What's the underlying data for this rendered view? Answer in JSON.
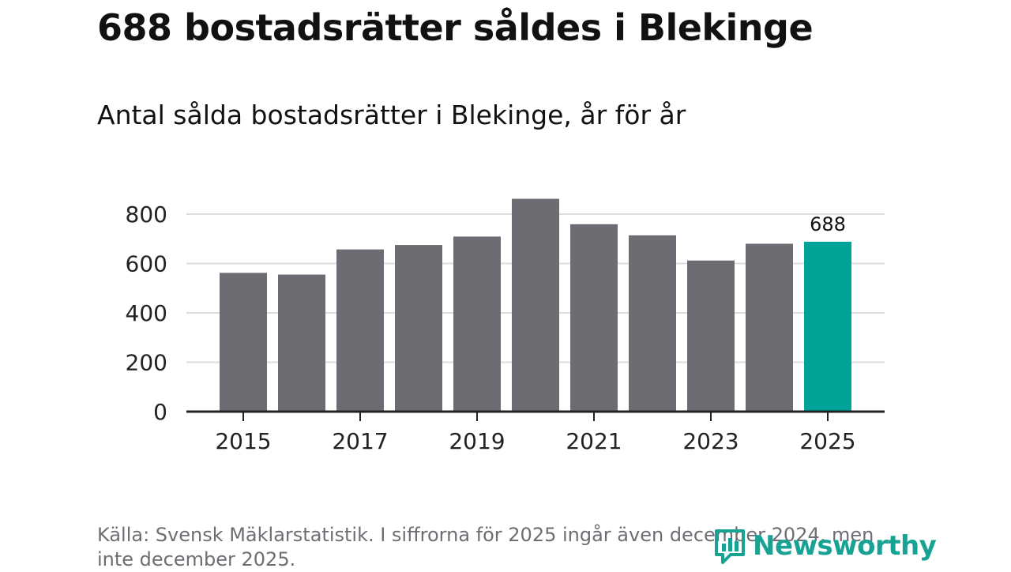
{
  "headline": "688 bostadsrätter såldes i Blekinge",
  "subtitle": "Antal sålda bostadsrätter i Blekinge, år för år",
  "source_note": "Källa: Svensk Mäklarstatistik. I siffrorna för 2025 ingår även december 2024, men inte december 2025.",
  "brand": {
    "name": "Newsworthy",
    "icon": "bar-chart-logo-icon"
  },
  "colors": {
    "bar": "#6d6c72",
    "highlight": "#00a398",
    "grid": "#dedede",
    "axis": "#222222"
  },
  "chart_data": {
    "type": "bar",
    "title": "Antal sålda bostadsrätter i Blekinge, år för år",
    "categories": [
      "2015",
      "2016",
      "2017",
      "2018",
      "2019",
      "2020",
      "2021",
      "2022",
      "2023",
      "2024",
      "2025"
    ],
    "values": [
      562,
      555,
      657,
      675,
      709,
      862,
      759,
      714,
      612,
      680,
      688
    ],
    "highlight_index": 10,
    "data_labels": [
      {
        "index": 10,
        "text": "688"
      }
    ],
    "xticks": [
      "2015",
      "2017",
      "2019",
      "2021",
      "2023",
      "2025"
    ],
    "yticks": [
      0,
      200,
      400,
      600,
      800
    ],
    "ylim": [
      0,
      900
    ],
    "xlabel": "",
    "ylabel": "",
    "grid": true
  }
}
